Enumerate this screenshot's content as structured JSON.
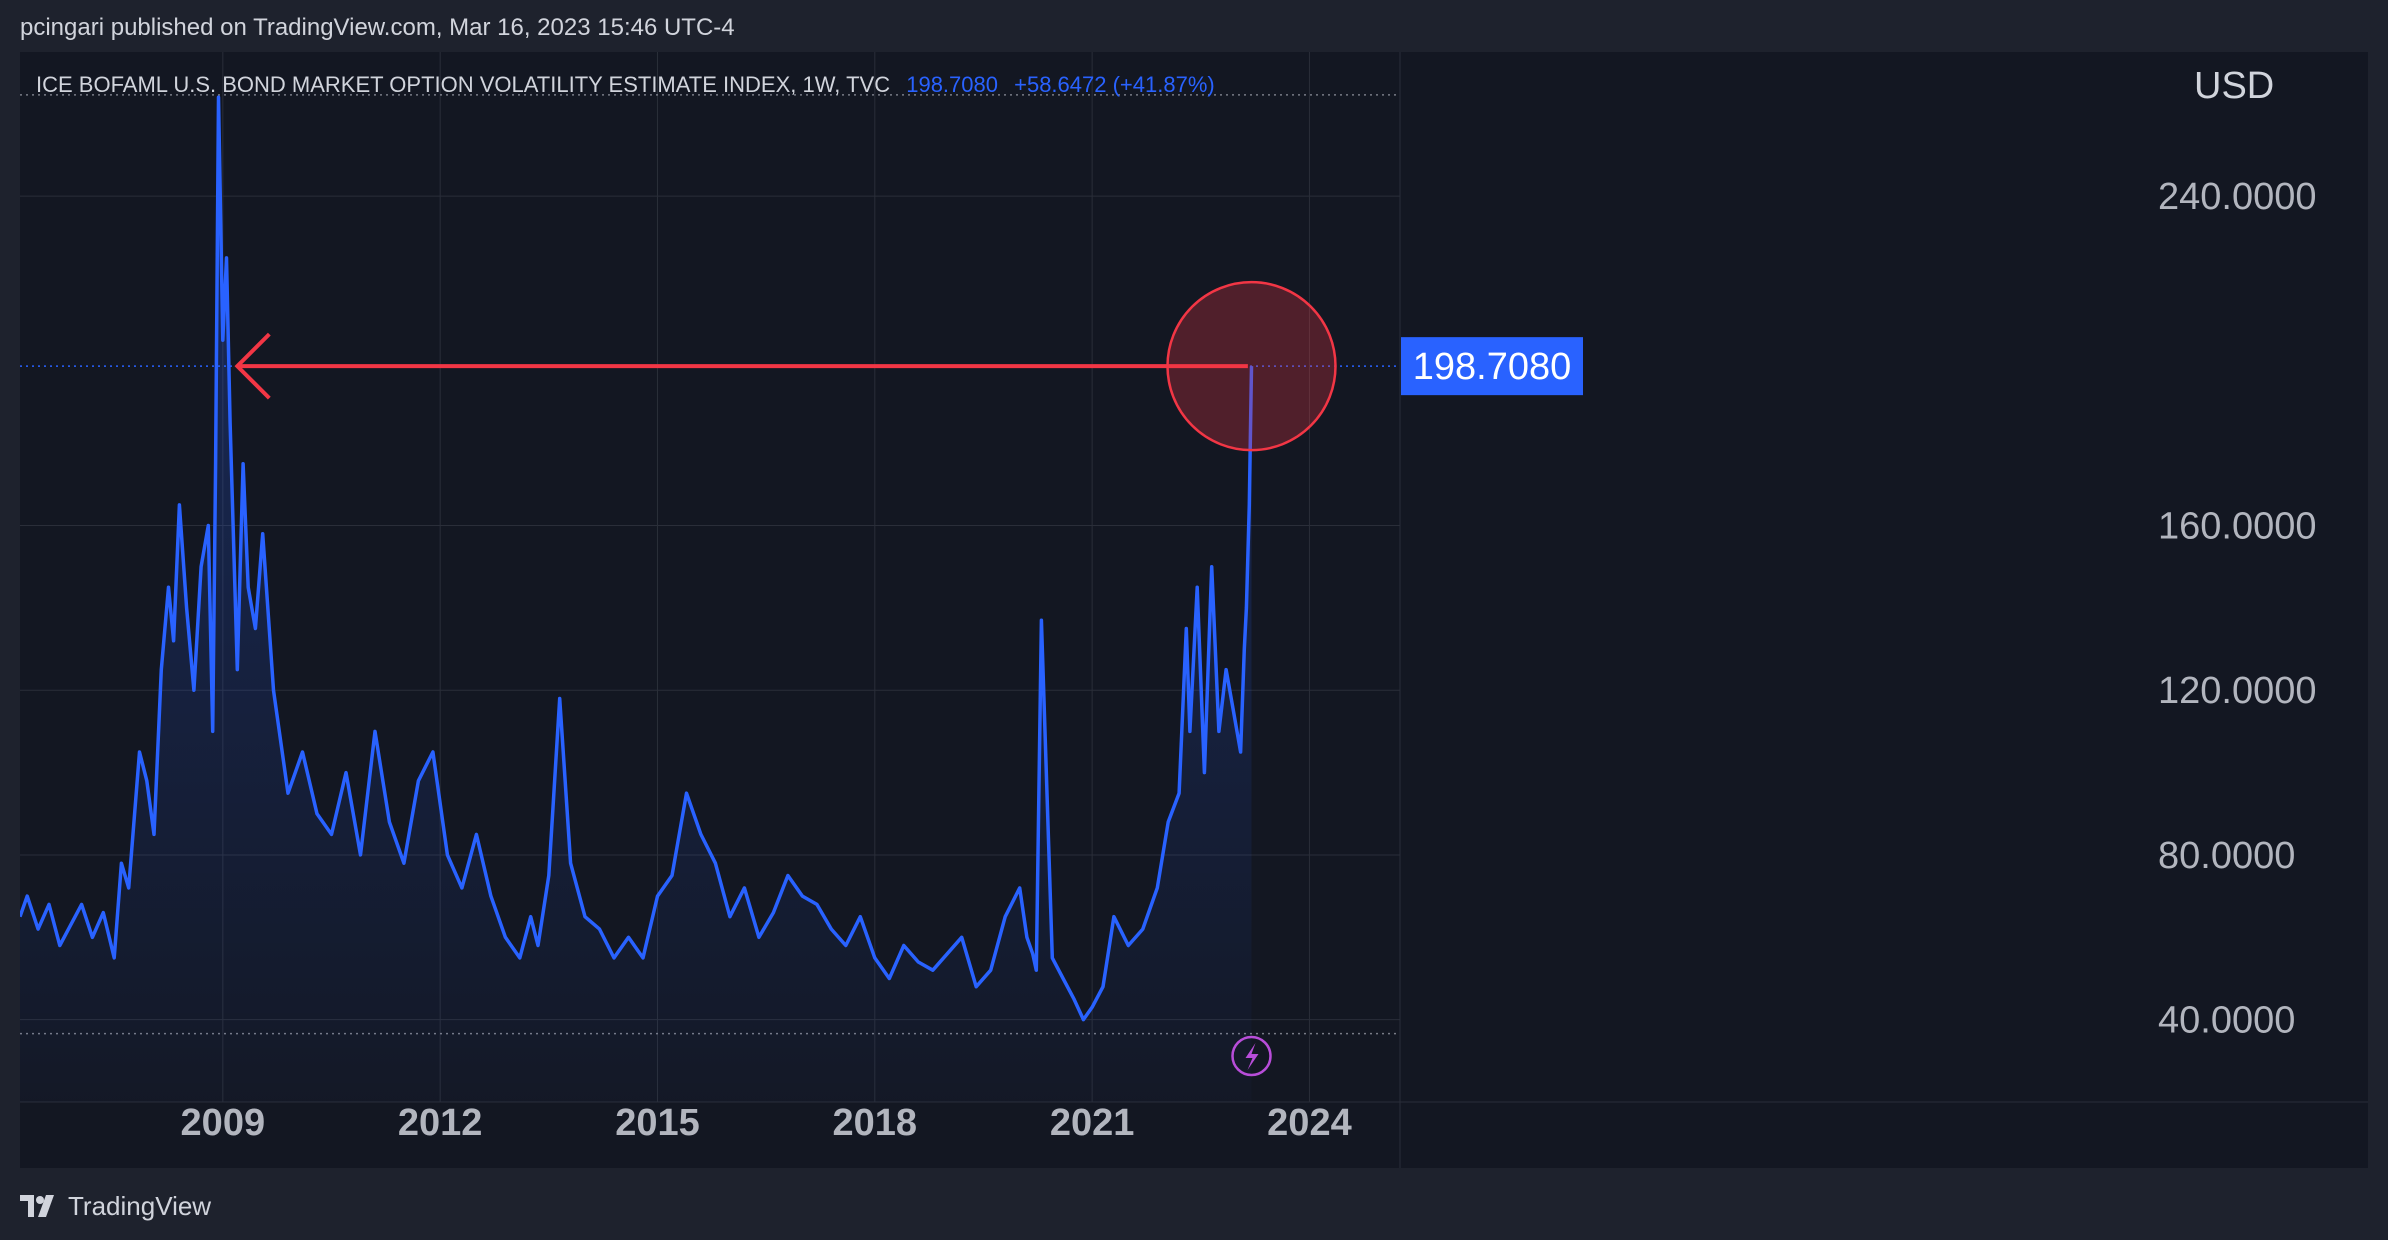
{
  "header": {
    "published_line": "pcingari published on TradingView.com, Mar 16, 2023 15:46 UTC-4"
  },
  "legend": {
    "title": "ICE BOFAML U.S. BOND MARKET OPTION VOLATILITY ESTIMATE INDEX, 1W, TVC",
    "last": "198.7080",
    "change": "+58.6472 (+41.87%)"
  },
  "footer": {
    "brand": "TradingView",
    "logo_icon": "tradingview-logo-icon"
  },
  "colors": {
    "background": "#131722",
    "line": "#2962ff",
    "annotation": "#f23645",
    "grid": "#2a2e39",
    "axis_text": "#b2b5be",
    "event_icon": "#b84dd9"
  },
  "chart_data": {
    "type": "area",
    "title": "ICE BOFAML U.S. BOND MARKET OPTION VOLATILITY ESTIMATE INDEX, 1W, TVC",
    "ylabel": "USD",
    "xlabel": "",
    "xlim": [
      2006.2,
      2025.25
    ],
    "ylim": [
      20,
      275
    ],
    "x_ticks": [
      2009,
      2012,
      2015,
      2018,
      2021,
      2024
    ],
    "x_tick_labels": [
      "2009",
      "2012",
      "2015",
      "2018",
      "2021",
      "2024"
    ],
    "y_ticks": [
      40,
      80,
      120,
      160,
      240
    ],
    "y_tick_labels": [
      "40.0000",
      "80.0000",
      "120.0000",
      "160.0000",
      "240.0000"
    ],
    "last_value": 198.708,
    "last_value_label": "198.7080",
    "high_value": 264.6,
    "low_value": 36.6,
    "grid": true,
    "series": [
      {
        "x": [
          2006.2,
          2006.3,
          2006.45,
          2006.6,
          2006.75,
          2006.9,
          2007.05,
          2007.2,
          2007.35,
          2007.5,
          2007.6,
          2007.7,
          2007.85,
          2007.95,
          2008.05,
          2008.15,
          2008.25,
          2008.32,
          2008.4,
          2008.5,
          2008.6,
          2008.7,
          2008.8,
          2008.86,
          2008.9,
          2008.94,
          2009.0,
          2009.05,
          2009.1,
          2009.2,
          2009.28,
          2009.35,
          2009.45,
          2009.55,
          2009.7,
          2009.9,
          2010.1,
          2010.3,
          2010.5,
          2010.7,
          2010.9,
          2011.1,
          2011.3,
          2011.5,
          2011.7,
          2011.9,
          2012.1,
          2012.3,
          2012.5,
          2012.7,
          2012.9,
          2013.1,
          2013.25,
          2013.35,
          2013.5,
          2013.65,
          2013.8,
          2014.0,
          2014.2,
          2014.4,
          2014.6,
          2014.8,
          2015.0,
          2015.2,
          2015.4,
          2015.6,
          2015.8,
          2016.0,
          2016.2,
          2016.4,
          2016.6,
          2016.8,
          2017.0,
          2017.2,
          2017.4,
          2017.6,
          2017.8,
          2018.0,
          2018.2,
          2018.4,
          2018.6,
          2018.8,
          2019.0,
          2019.2,
          2019.4,
          2019.6,
          2019.8,
          2020.0,
          2020.1,
          2020.18,
          2020.23,
          2020.3,
          2020.45,
          2020.6,
          2020.75,
          2020.88,
          2021.0,
          2021.15,
          2021.3,
          2021.5,
          2021.7,
          2021.9,
          2022.05,
          2022.2,
          2022.3,
          2022.35,
          2022.45,
          2022.55,
          2022.65,
          2022.75,
          2022.85,
          2022.95,
          2023.05,
          2023.1,
          2023.13,
          2023.17,
          2023.2
        ],
        "y": [
          65,
          70,
          62,
          68,
          58,
          63,
          68,
          60,
          66,
          55,
          78,
          72,
          105,
          98,
          85,
          125,
          145,
          132,
          165,
          140,
          120,
          150,
          160,
          110,
          175,
          264,
          205,
          225,
          185,
          125,
          175,
          145,
          135,
          158,
          120,
          95,
          105,
          90,
          85,
          100,
          80,
          110,
          88,
          78,
          98,
          105,
          80,
          72,
          85,
          70,
          60,
          55,
          65,
          58,
          75,
          118,
          78,
          65,
          62,
          55,
          60,
          55,
          70,
          75,
          95,
          85,
          78,
          65,
          72,
          60,
          66,
          75,
          70,
          68,
          62,
          58,
          65,
          55,
          50,
          58,
          54,
          52,
          56,
          60,
          48,
          52,
          65,
          72,
          60,
          56,
          52,
          137,
          55,
          50,
          45,
          40,
          43,
          48,
          65,
          58,
          62,
          72,
          88,
          95,
          135,
          110,
          145,
          100,
          150,
          110,
          125,
          115,
          105,
          130,
          140,
          165,
          198.708
        ]
      }
    ],
    "annotations": [
      {
        "type": "arrow",
        "from_x": 2023.15,
        "to_x": 2009.2,
        "y": 198.708
      },
      {
        "type": "circle",
        "x": 2023.2,
        "y": 198.708
      }
    ]
  }
}
